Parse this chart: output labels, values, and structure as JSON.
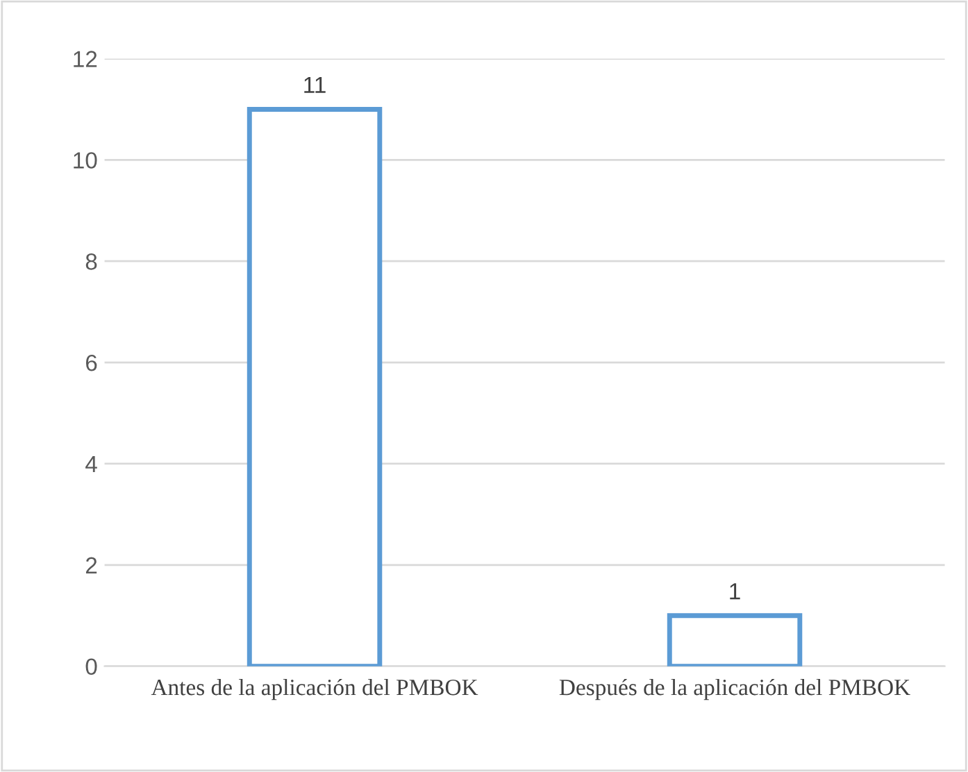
{
  "chart_data": {
    "type": "bar",
    "categories": [
      "Antes de la aplicación del PMBOK",
      "Después de la aplicación del PMBOK"
    ],
    "values": [
      11,
      1
    ],
    "color": "#5b9bd5",
    "ylim": [
      0,
      12
    ],
    "yticks": [
      0,
      2,
      4,
      6,
      8,
      10,
      12
    ],
    "grid": "y",
    "data_labels": true,
    "legend": false
  }
}
